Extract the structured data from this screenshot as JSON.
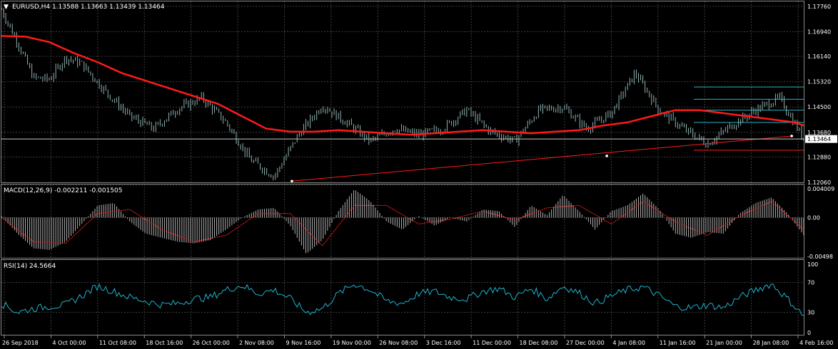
{
  "colors": {
    "background": "#000000",
    "grid": "#3d3d3d",
    "candles": "#8fb2b2",
    "ma": "#ff1a1a",
    "macd_hist": "#b3b3b3",
    "macd_signal": "#ff2020",
    "rsi": "#1fb3cc",
    "channel": "#2bb7c6",
    "price_tag_bg": "#ffffff",
    "price_tag_fg": "#000000"
  },
  "header": {
    "symbol_line": "EURUSD,H4  1.13588 1.13663 1.13439 1.13464"
  },
  "chart_data": [
    {
      "type": "line",
      "title": "EURUSD,H4  1.13588 1.13663 1.13439 1.13464",
      "ohlc": {
        "open": 1.13588,
        "high": 1.13663,
        "low": 1.13439,
        "close": 1.13464
      },
      "current_price_label": "1.13464",
      "ylim": [
        1.1206,
        1.1792
      ],
      "y_ticks": [
        1.1776,
        1.1694,
        1.1614,
        1.1532,
        1.145,
        1.1368,
        1.1288,
        1.1206
      ],
      "y_tick_labels": [
        "1.17760",
        "1.16940",
        "1.16140",
        "1.15320",
        "1.14500",
        "1.13680",
        "1.12880",
        "1.12060"
      ],
      "series": [
        {
          "role": "candles",
          "x": [
            0,
            2,
            4,
            6,
            8,
            10,
            13,
            16,
            19,
            22,
            25,
            28,
            31,
            34,
            37,
            40,
            43,
            46,
            49,
            52,
            55,
            58,
            61,
            64,
            67,
            70,
            73,
            76,
            79,
            82,
            85,
            88,
            91,
            94,
            97,
            100
          ],
          "values": [
            1.1765,
            1.166,
            1.1545,
            1.154,
            1.161,
            1.159,
            1.15,
            1.142,
            1.138,
            1.1445,
            1.148,
            1.14,
            1.128,
            1.1225,
            1.136,
            1.1455,
            1.14,
            1.134,
            1.138,
            1.136,
            1.138,
            1.144,
            1.137,
            1.134,
            1.144,
            1.145,
            1.138,
            1.143,
            1.156,
            1.144,
            1.138,
            1.133,
            1.139,
            1.144,
            1.148,
            1.1346
          ]
        },
        {
          "role": "moving-average",
          "x": [
            0,
            3,
            6,
            9,
            12,
            15,
            18,
            21,
            24,
            27,
            30,
            33,
            36,
            39,
            42,
            45,
            48,
            51,
            54,
            57,
            60,
            63,
            66,
            69,
            72,
            75,
            78,
            81,
            84,
            87,
            90,
            93,
            96,
            99,
            100
          ],
          "values": [
            1.168,
            1.1678,
            1.166,
            1.1625,
            1.1595,
            1.156,
            1.1535,
            1.151,
            1.1485,
            1.146,
            1.142,
            1.138,
            1.137,
            1.137,
            1.1375,
            1.137,
            1.1365,
            1.136,
            1.1365,
            1.137,
            1.1375,
            1.137,
            1.1365,
            1.137,
            1.1375,
            1.139,
            1.14,
            1.142,
            1.144,
            1.144,
            1.143,
            1.142,
            1.141,
            1.14,
            1.139
          ]
        },
        {
          "role": "trendline",
          "x": [
            36.2,
            98.5
          ],
          "values": [
            1.121,
            1.1356
          ]
        }
      ],
      "channel_levels": [
        1.1515,
        1.1475,
        1.144,
        1.14,
        1.131
      ],
      "channel_x_range": [
        86.3,
        100
      ]
    },
    {
      "type": "bar",
      "title": "MACD(12,26,9) -0.002211 -0.001505",
      "ylim": [
        -0.00498,
        0.00409
      ],
      "y_ticks": [
        0.004009,
        0.0,
        -0.00498
      ],
      "y_tick_labels": [
        "0.004009",
        "0.00",
        "-0.00498"
      ],
      "series": [
        {
          "role": "histogram",
          "x": [
            0,
            2,
            4,
            6,
            8,
            10,
            12,
            14,
            16,
            18,
            20,
            22,
            24,
            26,
            28,
            30,
            32,
            34,
            36,
            38,
            40,
            42,
            44,
            46,
            48,
            50,
            52,
            54,
            56,
            58,
            60,
            62,
            64,
            66,
            68,
            70,
            72,
            74,
            76,
            78,
            80,
            82,
            84,
            86,
            88,
            90,
            92,
            94,
            96,
            98,
            100
          ],
          "values": [
            0.0002,
            -0.002,
            -0.0038,
            -0.004,
            -0.003,
            -0.0008,
            0.0015,
            0.0018,
            -0.0005,
            -0.002,
            -0.0025,
            -0.003,
            -0.0032,
            -0.0028,
            -0.0015,
            0.0,
            0.001,
            0.0012,
            -0.001,
            -0.0045,
            -0.0028,
            0.0008,
            0.0035,
            0.002,
            -0.0005,
            -0.0015,
            0.0002,
            -0.001,
            0.0,
            -0.0005,
            0.001,
            0.0008,
            -0.0012,
            0.0015,
            0.0003,
            0.0028,
            0.0008,
            -0.0015,
            0.0008,
            0.0015,
            0.003,
            0.001,
            -0.002,
            -0.0025,
            -0.0018,
            -0.002,
            0.0005,
            0.0018,
            0.0025,
            0.0005,
            -0.0022
          ]
        },
        {
          "role": "signal",
          "x": [
            0,
            4,
            8,
            12,
            16,
            20,
            24,
            28,
            32,
            36,
            40,
            44,
            48,
            52,
            56,
            60,
            64,
            68,
            72,
            76,
            80,
            84,
            88,
            92,
            96,
            100
          ],
          "values": [
            0.0,
            -0.003,
            -0.0032,
            0.0005,
            0.001,
            -0.0015,
            -0.003,
            -0.0022,
            0.0005,
            0.0005,
            -0.0035,
            0.0015,
            0.0015,
            -0.0008,
            -0.0002,
            0.0008,
            -0.0003,
            0.0012,
            0.0015,
            -0.0008,
            0.002,
            -0.0005,
            -0.0022,
            0.0002,
            0.002,
            -0.0015
          ]
        }
      ]
    },
    {
      "type": "line",
      "title": "RSI(14) 24.5664",
      "ylim": [
        0,
        100
      ],
      "y_ticks": [
        100,
        70,
        30,
        0
      ],
      "y_tick_labels": [
        "100",
        "70",
        "30",
        "0"
      ],
      "series": [
        {
          "role": "rsi",
          "x": [
            0,
            2,
            4,
            6,
            8,
            10,
            12,
            14,
            16,
            18,
            20,
            22,
            24,
            26,
            28,
            30,
            32,
            34,
            36,
            38,
            40,
            42,
            44,
            46,
            48,
            50,
            52,
            54,
            56,
            58,
            60,
            62,
            64,
            66,
            68,
            70,
            72,
            74,
            76,
            78,
            80,
            82,
            84,
            86,
            88,
            90,
            92,
            94,
            96,
            98,
            100
          ],
          "values": [
            42,
            30,
            35,
            38,
            40,
            52,
            65,
            58,
            50,
            45,
            40,
            42,
            48,
            50,
            60,
            66,
            55,
            60,
            48,
            30,
            35,
            55,
            68,
            60,
            45,
            42,
            55,
            58,
            50,
            48,
            58,
            62,
            50,
            62,
            48,
            65,
            56,
            42,
            52,
            60,
            64,
            52,
            38,
            36,
            40,
            36,
            50,
            60,
            68,
            48,
            25
          ]
        }
      ]
    }
  ],
  "x_axis": {
    "labels": [
      "26 Sep 2018",
      "4 Oct 00:00",
      "11 Oct 08:00",
      "18 Oct 16:00",
      "26 Oct 00:00",
      "2 Nov 08:00",
      "9 Nov 16:00",
      "19 Nov 00:00",
      "26 Nov 08:00",
      "3 Dec 16:00",
      "11 Dec 00:00",
      "18 Dec 08:00",
      "27 Dec 00:00",
      "4 Jan 08:00",
      "11 Jan 16:00",
      "21 Jan 00:00",
      "28 Jan 08:00",
      "4 Feb 16:00"
    ]
  }
}
